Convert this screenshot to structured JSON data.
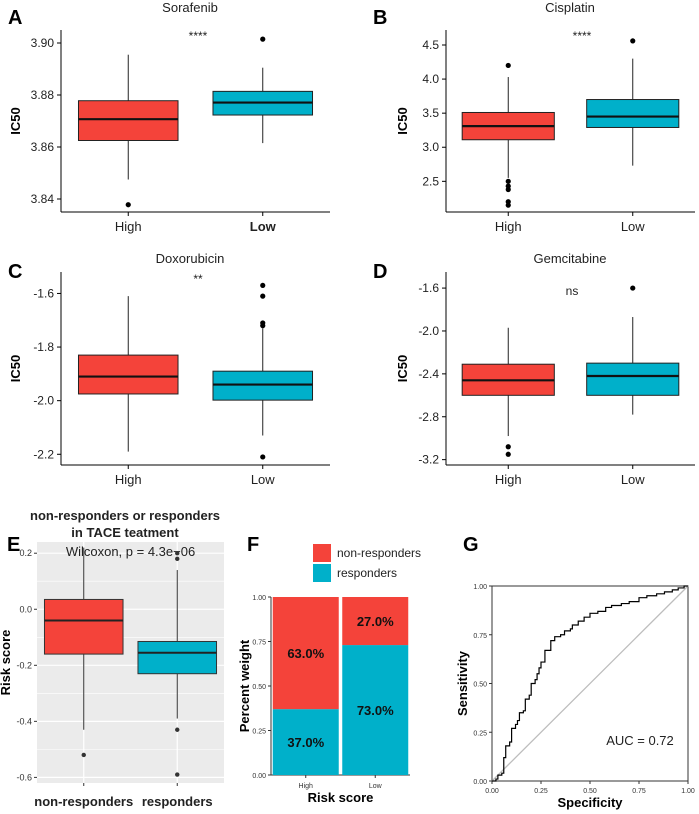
{
  "colors": {
    "high": "#f4433a",
    "low": "#00b0ca",
    "ggbg": "#ebebeb",
    "grid": "#ffffff",
    "roc": "#000000",
    "diag": "#bdbdbd"
  },
  "chart_data": [
    {
      "panel": "A",
      "type": "box",
      "title": "Sorafenib",
      "ylabel": "IC50",
      "ylim": [
        3.835,
        3.905
      ],
      "yticks": [
        3.84,
        3.86,
        3.88,
        3.9
      ],
      "ytick_labels": [
        "3.84",
        "3.86",
        "3.88",
        "3.90"
      ],
      "categories": [
        "High",
        "Low"
      ],
      "bold_categories": [
        false,
        true
      ],
      "significance": "****",
      "boxes": [
        {
          "name": "High",
          "q1": 3.8625,
          "median": 3.8707,
          "q3": 3.8778,
          "whisker_low": 3.8475,
          "whisker_high": 3.8955,
          "outliers": [
            3.8378
          ]
        },
        {
          "name": "Low",
          "q1": 3.8723,
          "median": 3.8771,
          "q3": 3.8814,
          "whisker_low": 3.8615,
          "whisker_high": 3.8905,
          "outliers": [
            3.9015
          ]
        }
      ]
    },
    {
      "panel": "B",
      "type": "box",
      "title": "Cisplatin",
      "ylabel": "IC50",
      "ylim": [
        2.05,
        4.72
      ],
      "yticks": [
        2.5,
        3.0,
        3.5,
        4.0,
        4.5
      ],
      "ytick_labels": [
        "2.5",
        "3.0",
        "3.5",
        "4.0",
        "4.5"
      ],
      "categories": [
        "High",
        "Low"
      ],
      "bold_categories": [
        false,
        false
      ],
      "significance": "****",
      "boxes": [
        {
          "name": "High",
          "q1": 3.11,
          "median": 3.31,
          "q3": 3.51,
          "whisker_low": 2.55,
          "whisker_high": 4.03,
          "outliers": [
            4.2,
            2.5,
            2.43,
            2.38,
            2.2,
            2.15
          ]
        },
        {
          "name": "Low",
          "q1": 3.29,
          "median": 3.45,
          "q3": 3.7,
          "whisker_low": 2.73,
          "whisker_high": 4.3,
          "outliers": [
            4.56
          ]
        }
      ]
    },
    {
      "panel": "C",
      "type": "box",
      "title": "Doxorubicin",
      "ylabel": "IC50",
      "ylim": [
        -2.24,
        -1.52
      ],
      "yticks": [
        -2.2,
        -2.0,
        -1.8,
        -1.6
      ],
      "ytick_labels": [
        "-2.2",
        "-2.0",
        "-1.8",
        "-1.6"
      ],
      "categories": [
        "High",
        "Low"
      ],
      "bold_categories": [
        false,
        false
      ],
      "significance": "**",
      "boxes": [
        {
          "name": "High",
          "q1": -1.975,
          "median": -1.91,
          "q3": -1.83,
          "whisker_low": -2.19,
          "whisker_high": -1.61,
          "outliers": []
        },
        {
          "name": "Low",
          "q1": -1.998,
          "median": -1.94,
          "q3": -1.89,
          "whisker_low": -2.13,
          "whisker_high": -1.73,
          "outliers": [
            -1.57,
            -1.61,
            -1.71,
            -1.72,
            -2.21
          ]
        }
      ]
    },
    {
      "panel": "D",
      "type": "box",
      "title": "Gemcitabine",
      "ylabel": "IC50",
      "ylim": [
        -3.25,
        -1.45
      ],
      "yticks": [
        -3.2,
        -2.8,
        -2.4,
        -2.0,
        -1.6
      ],
      "ytick_labels": [
        "-3.2",
        "-2.8",
        "-2.4",
        "-2.0",
        "-1.6"
      ],
      "categories": [
        "High",
        "Low"
      ],
      "bold_categories": [
        false,
        false
      ],
      "significance": "ns",
      "boxes": [
        {
          "name": "High",
          "q1": -2.6,
          "median": -2.46,
          "q3": -2.31,
          "whisker_low": -2.98,
          "whisker_high": -1.97,
          "outliers": [
            -3.08,
            -3.15
          ]
        },
        {
          "name": "Low",
          "q1": -2.6,
          "median": -2.42,
          "q3": -2.3,
          "whisker_low": -2.78,
          "whisker_high": -1.87,
          "outliers": [
            -1.6
          ]
        }
      ]
    },
    {
      "panel": "E",
      "type": "box",
      "title_lines": [
        "non-responders or responders",
        "in TACE teatment"
      ],
      "ylabel": "Risk score",
      "ylim": [
        -0.62,
        0.24
      ],
      "yticks": [
        -0.6,
        -0.4,
        -0.2,
        0.0,
        0.2
      ],
      "ytick_labels": [
        "-0.6",
        "-0.4",
        "-0.2",
        "0.0",
        "0.2"
      ],
      "categories": [
        "non-responders",
        "responders"
      ],
      "annotation": "Wilcoxon, p = 4.3e−06",
      "boxes": [
        {
          "name": "non-responders",
          "q1": -0.16,
          "median": -0.04,
          "q3": 0.035,
          "whisker_low": -0.43,
          "whisker_high": 0.22,
          "outliers": [
            -0.52
          ]
        },
        {
          "name": "responders",
          "q1": -0.23,
          "median": -0.155,
          "q3": -0.115,
          "whisker_low": -0.39,
          "whisker_high": 0.14,
          "outliers": [
            0.2,
            0.18,
            -0.43,
            -0.59
          ]
        }
      ]
    },
    {
      "panel": "F",
      "type": "stacked-bar",
      "xlabel": "Risk score",
      "ylabel": "Percent weight",
      "ylim": [
        0,
        1
      ],
      "yticks": [
        0,
        0.25,
        0.5,
        0.75,
        1.0
      ],
      "ytick_labels": [
        "0.00",
        "0.25",
        "0.50",
        "0.75",
        "1.00"
      ],
      "categories": [
        "High",
        "Low"
      ],
      "legend": [
        "non-responders",
        "responders"
      ],
      "series": [
        {
          "name": "responders",
          "values": [
            0.37,
            0.73
          ],
          "labels": [
            "37.0%",
            "73.0%"
          ]
        },
        {
          "name": "non-responders",
          "values": [
            0.63,
            0.27
          ],
          "labels": [
            "63.0%",
            "27.0%"
          ]
        }
      ]
    },
    {
      "panel": "G",
      "type": "line",
      "xlabel": "Specificity",
      "ylabel": "Sensitivity",
      "xlim": [
        0,
        1
      ],
      "ylim": [
        0,
        1
      ],
      "ticks": [
        0,
        0.25,
        0.5,
        0.75,
        1.0
      ],
      "tick_labels": [
        "0.00",
        "0.25",
        "0.50",
        "0.75",
        "1.00"
      ],
      "annotation": "AUC = 0.72",
      "roc": [
        [
          0,
          0
        ],
        [
          0.02,
          0.01
        ],
        [
          0.03,
          0.03
        ],
        [
          0.05,
          0.04
        ],
        [
          0.06,
          0.06
        ],
        [
          0.06,
          0.12
        ],
        [
          0.07,
          0.12
        ],
        [
          0.07,
          0.18
        ],
        [
          0.09,
          0.2
        ],
        [
          0.1,
          0.22
        ],
        [
          0.1,
          0.27
        ],
        [
          0.12,
          0.29
        ],
        [
          0.13,
          0.31
        ],
        [
          0.14,
          0.35
        ],
        [
          0.16,
          0.36
        ],
        [
          0.17,
          0.38
        ],
        [
          0.17,
          0.42
        ],
        [
          0.19,
          0.44
        ],
        [
          0.2,
          0.46
        ],
        [
          0.2,
          0.5
        ],
        [
          0.22,
          0.52
        ],
        [
          0.23,
          0.55
        ],
        [
          0.24,
          0.58
        ],
        [
          0.25,
          0.61
        ],
        [
          0.27,
          0.63
        ],
        [
          0.27,
          0.67
        ],
        [
          0.3,
          0.67
        ],
        [
          0.3,
          0.72
        ],
        [
          0.32,
          0.74
        ],
        [
          0.35,
          0.75
        ],
        [
          0.37,
          0.77
        ],
        [
          0.4,
          0.78
        ],
        [
          0.41,
          0.8
        ],
        [
          0.44,
          0.82
        ],
        [
          0.47,
          0.84
        ],
        [
          0.5,
          0.86
        ],
        [
          0.54,
          0.87
        ],
        [
          0.58,
          0.89
        ],
        [
          0.61,
          0.9
        ],
        [
          0.66,
          0.91
        ],
        [
          0.7,
          0.92
        ],
        [
          0.75,
          0.94
        ],
        [
          0.79,
          0.95
        ],
        [
          0.84,
          0.96
        ],
        [
          0.88,
          0.97
        ],
        [
          0.92,
          0.98
        ],
        [
          0.95,
          0.99
        ],
        [
          0.98,
          1.0
        ],
        [
          1,
          1
        ]
      ]
    }
  ]
}
